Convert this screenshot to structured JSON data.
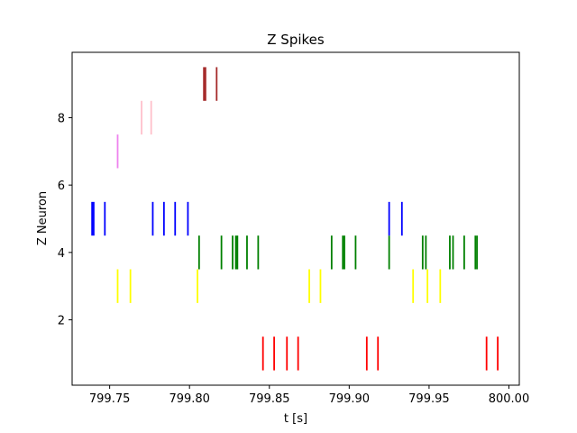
{
  "chart_data": {
    "type": "scatter",
    "title": "Z Spikes",
    "xlabel": "t [s]",
    "ylabel": "Z Neuron",
    "xlim": [
      799.7265,
      800.0065
    ],
    "ylim": [
      0.06,
      9.94
    ],
    "xticks": [
      799.75,
      799.8,
      799.85,
      799.9,
      799.95,
      800.0
    ],
    "xtick_labels": [
      "799.75",
      "799.80",
      "799.85",
      "799.90",
      "799.95",
      "800.00"
    ],
    "yticks": [
      2,
      4,
      6,
      8
    ],
    "ytick_labels": [
      "2",
      "4",
      "6",
      "8"
    ],
    "grid": false,
    "legend": "none",
    "marker": "vertical line, one unit tall, centered on the neuron index",
    "series": [
      {
        "neuron": 1,
        "color": "#ff0000",
        "times": [
          799.846,
          799.853,
          799.861,
          799.868,
          799.911,
          799.918,
          799.986,
          799.993
        ]
      },
      {
        "neuron": 3,
        "color": "#ffff00",
        "times": [
          799.755,
          799.763,
          799.805,
          799.875,
          799.882,
          799.94,
          799.949,
          799.957
        ]
      },
      {
        "neuron": 4,
        "color": "#008000",
        "times": [
          799.806,
          799.82,
          799.827,
          799.829,
          799.83,
          799.836,
          799.843,
          799.889,
          799.896,
          799.897,
          799.904,
          799.925,
          799.946,
          799.948,
          799.963,
          799.965,
          799.972,
          799.979,
          799.98
        ]
      },
      {
        "neuron": 5,
        "color": "#0000ff",
        "times": [
          799.739,
          799.74,
          799.747,
          799.777,
          799.784,
          799.791,
          799.799,
          799.925,
          799.933
        ]
      },
      {
        "neuron": 7,
        "color": "#ee82ee",
        "times": [
          799.755
        ]
      },
      {
        "neuron": 8,
        "color": "#ffc0cb",
        "times": [
          799.77,
          799.776
        ]
      },
      {
        "neuron": 9,
        "color": "#a52a2a",
        "times": [
          799.809,
          799.81,
          799.817
        ]
      }
    ]
  }
}
